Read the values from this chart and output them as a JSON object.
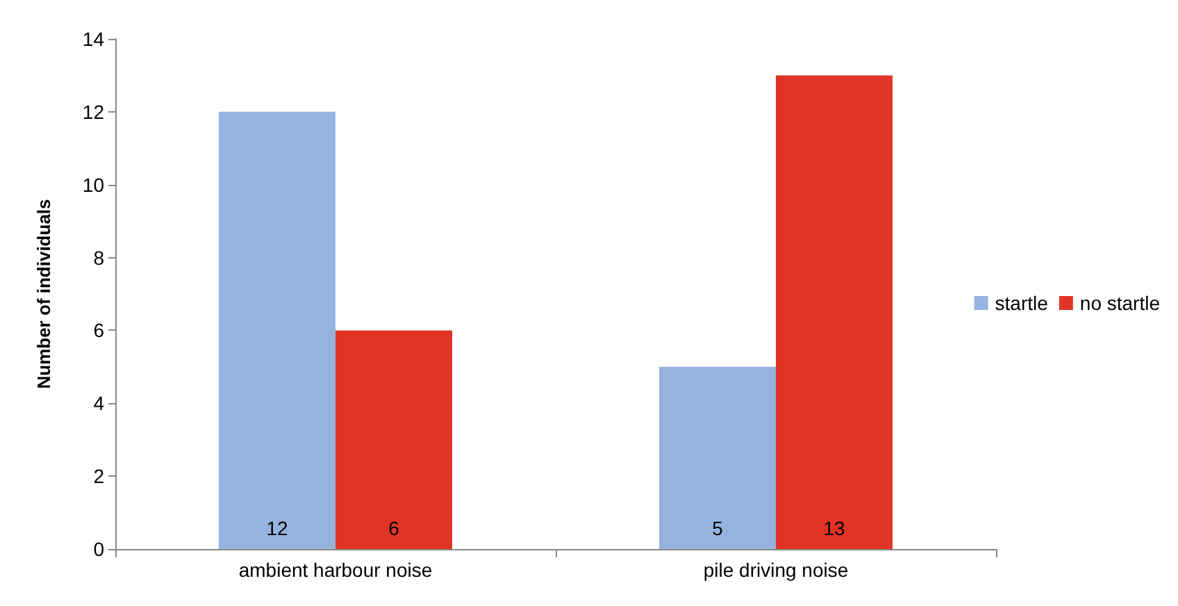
{
  "chart_data": {
    "type": "bar",
    "ylabel": "Number of individuals",
    "categories": [
      "ambient harbour noise",
      "pile driving noise"
    ],
    "series": [
      {
        "name": "startle",
        "color": "#95b3de",
        "values": [
          12,
          5
        ]
      },
      {
        "name": "no startle",
        "color": "#e03426",
        "values": [
          6,
          13
        ]
      }
    ],
    "ylim": [
      0,
      14
    ],
    "yticks": [
      0,
      2,
      4,
      6,
      8,
      10,
      12,
      14
    ],
    "data_labels": true,
    "legend": "right",
    "grid": false
  }
}
